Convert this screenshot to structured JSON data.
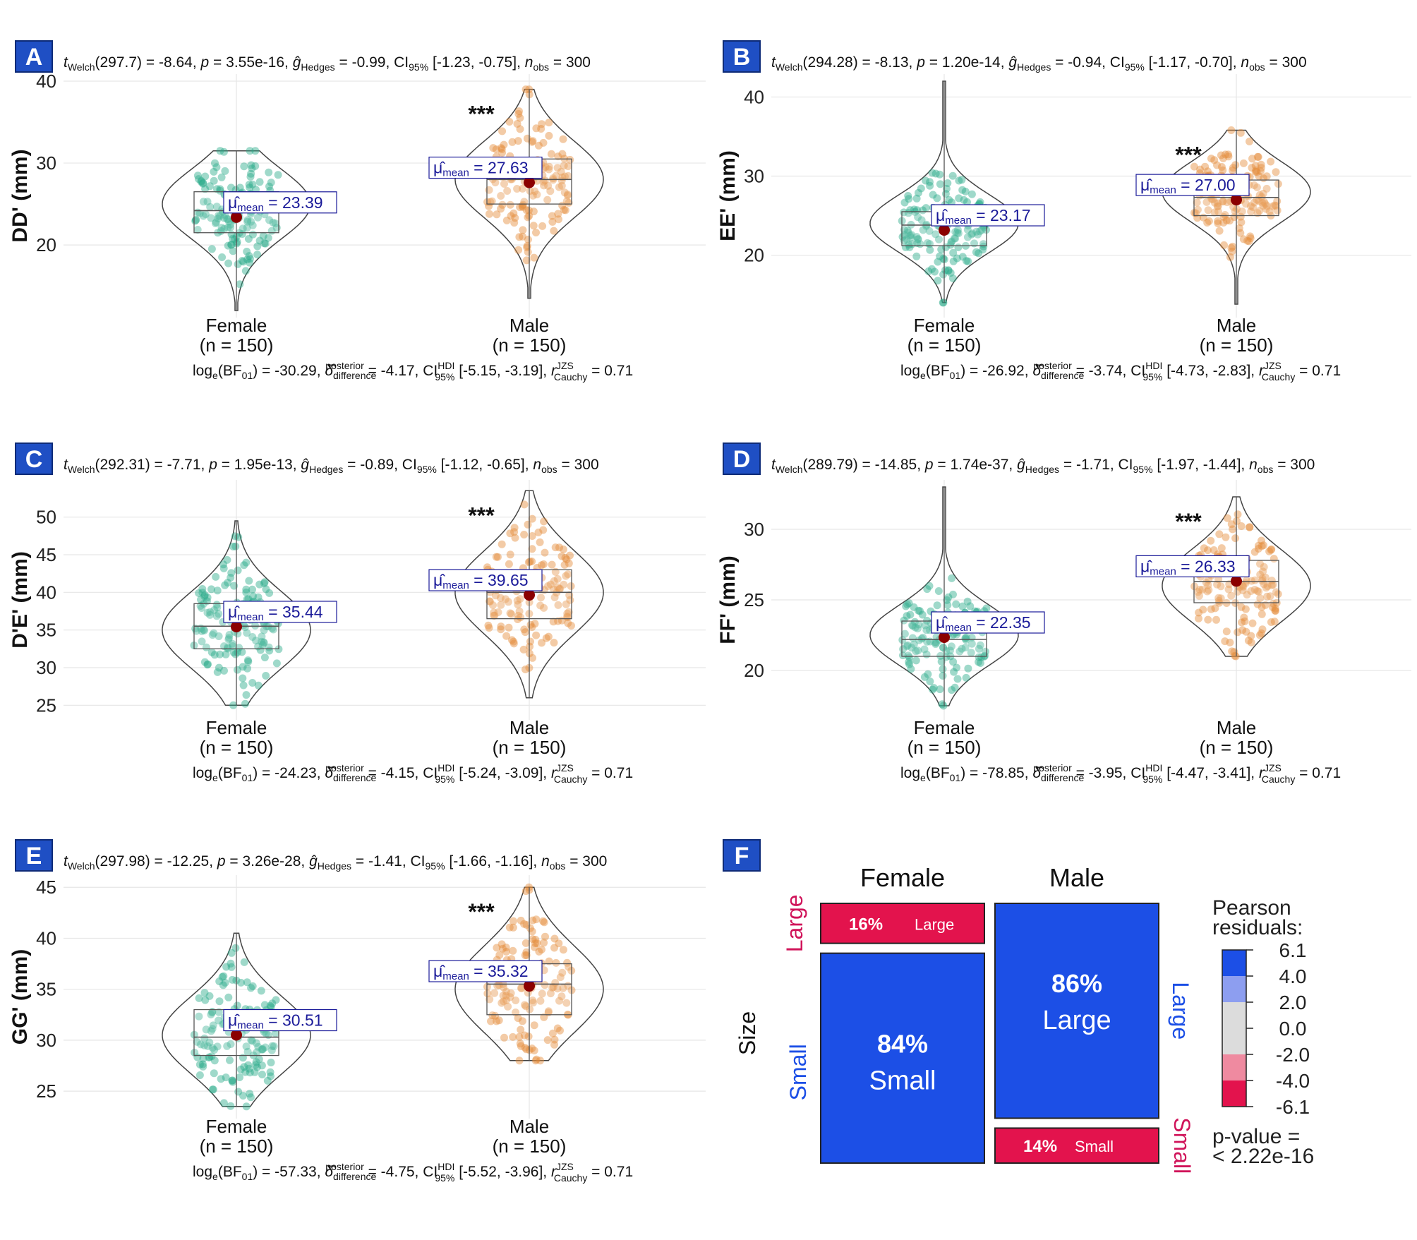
{
  "colors": {
    "female": "#2bab8a",
    "male": "#e48b3a",
    "mean_dot": "#8b0000",
    "badge": "#1f4fc4",
    "mosaic_blue": "#1c4fe6",
    "mosaic_red": "#e3134d",
    "side_blue": "#1c4fe6",
    "side_red": "#d0145a"
  },
  "chart_data": [
    {
      "panel": "A",
      "type": "violin",
      "stat_header": {
        "t_welch": "(297.7) = -8.64, ",
        "p": " = 3.55e-16, ",
        "g": " = -0.99, CI",
        "ci": " [-1.23, -0.75], ",
        "n": " = 300"
      },
      "stat_footer": {
        "logbf": ") = -30.29, ",
        "delta": " = -4.17, CI",
        "ci": " [-5.15, -3.19], ",
        "r": " = 0.71"
      },
      "ylabel": "DD' (mm)",
      "ylim": [
        12,
        40
      ],
      "yticks": [
        20,
        30,
        40
      ],
      "stars": "***",
      "groups": [
        {
          "name": "Female",
          "n_label": "(n = 150)",
          "mean": 23.39,
          "mean_label": "= 23.39",
          "q1": 21.5,
          "median": 24.2,
          "q3": 26.5,
          "min": 12,
          "max": 31.5,
          "peak": 25
        },
        {
          "name": "Male",
          "n_label": "(n = 150)",
          "mean": 27.63,
          "mean_label": "= 27.63",
          "q1": 25,
          "median": 28,
          "q3": 30.5,
          "min": 13.5,
          "max": 39,
          "peak": 28
        }
      ]
    },
    {
      "panel": "B",
      "type": "violin",
      "stat_header": {
        "t_welch": "(294.28) = -8.13, ",
        "p": " = 1.20e-14, ",
        "g": " = -0.94, CI",
        "ci": " [-1.17, -0.70], ",
        "n": " = 300"
      },
      "stat_footer": {
        "logbf": ") = -26.92, ",
        "delta": " = -3.74, CI",
        "ci": " [-4.73, -2.83], ",
        "r": " = 0.71"
      },
      "ylabel": "EE' (mm)",
      "ylim": [
        13,
        42
      ],
      "yticks": [
        20,
        30,
        40
      ],
      "stars": "***",
      "groups": [
        {
          "name": "Female",
          "n_label": "(n = 150)",
          "mean": 23.17,
          "mean_label": "= 23.17",
          "q1": 21.2,
          "median": 23.8,
          "q3": 25.5,
          "min": 14,
          "max": 42,
          "peak": 24
        },
        {
          "name": "Male",
          "n_label": "(n = 150)",
          "mean": 27.0,
          "mean_label": "= 27.00",
          "q1": 25,
          "median": 27.3,
          "q3": 29.5,
          "min": 13.8,
          "max": 35.8,
          "peak": 28
        }
      ]
    },
    {
      "panel": "C",
      "type": "violin",
      "stat_header": {
        "t_welch": "(292.31) = -7.71, ",
        "p": " = 1.95e-13, ",
        "g": " = -0.89, CI",
        "ci": " [-1.12, -0.65], ",
        "n": " = 300"
      },
      "stat_footer": {
        "logbf": ") = -24.23, ",
        "delta": " = -4.15, CI",
        "ci": " [-5.24, -3.09], ",
        "r": " = 0.71"
      },
      "ylabel": "D'E' (mm)",
      "ylim": [
        24,
        54
      ],
      "yticks": [
        25,
        30,
        35,
        40,
        45,
        50
      ],
      "stars": "***",
      "groups": [
        {
          "name": "Female",
          "n_label": "(n = 150)",
          "mean": 35.44,
          "mean_label": "= 35.44",
          "q1": 32.5,
          "median": 35.5,
          "q3": 38.5,
          "min": 25,
          "max": 49.5,
          "peak": 35
        },
        {
          "name": "Male",
          "n_label": "(n = 150)",
          "mean": 39.65,
          "mean_label": "= 39.65",
          "q1": 36.5,
          "median": 40,
          "q3": 43,
          "min": 26,
          "max": 53.5,
          "peak": 40
        }
      ]
    },
    {
      "panel": "D",
      "type": "violin",
      "stat_header": {
        "t_welch": "(289.79) = -14.85, ",
        "p": " = 1.74e-37, ",
        "g": " = -1.71, CI",
        "ci": " [-1.97, -1.44], ",
        "n": " = 300"
      },
      "stat_footer": {
        "logbf": ") = -78.85, ",
        "delta": " = -3.95, CI",
        "ci": " [-4.47, -3.41], ",
        "r": " = 0.71"
      },
      "ylabel": "FF' (mm)",
      "ylim": [
        17,
        33
      ],
      "yticks": [
        20,
        25,
        30
      ],
      "stars": "***",
      "groups": [
        {
          "name": "Female",
          "n_label": "(n = 150)",
          "mean": 22.35,
          "mean_label": "= 22.35",
          "q1": 21,
          "median": 22.2,
          "q3": 23.5,
          "min": 17.5,
          "max": 33,
          "peak": 22.5
        },
        {
          "name": "Male",
          "n_label": "(n = 150)",
          "mean": 26.33,
          "mean_label": "= 26.33",
          "q1": 24.8,
          "median": 26.3,
          "q3": 27.8,
          "min": 21,
          "max": 32.3,
          "peak": 26
        }
      ]
    },
    {
      "panel": "E",
      "type": "violin",
      "stat_header": {
        "t_welch": "(297.98) = -12.25, ",
        "p": " = 3.26e-28, ",
        "g": " = -1.41, CI",
        "ci": " [-1.66, -1.16], ",
        "n": " = 300"
      },
      "stat_footer": {
        "logbf": ") = -57.33, ",
        "delta": " = -4.75, CI",
        "ci": " [-5.52, -3.96], ",
        "r": " = 0.71"
      },
      "ylabel": "GG' (mm)",
      "ylim": [
        23,
        45.5
      ],
      "yticks": [
        25,
        30,
        35,
        40,
        45
      ],
      "stars": "***",
      "groups": [
        {
          "name": "Female",
          "n_label": "(n = 150)",
          "mean": 30.51,
          "mean_label": "= 30.51",
          "q1": 28.5,
          "median": 30.3,
          "q3": 33,
          "min": 23.5,
          "max": 40.5,
          "peak": 30.5
        },
        {
          "name": "Male",
          "n_label": "(n = 150)",
          "mean": 35.32,
          "mean_label": "= 35.32",
          "q1": 32.5,
          "median": 35.5,
          "q3": 37.5,
          "min": 28,
          "max": 45,
          "peak": 35
        }
      ]
    },
    {
      "panel": "F",
      "type": "mosaic",
      "columns": [
        "Female",
        "Male"
      ],
      "y_axis_label": "Size",
      "cells": {
        "female_large": {
          "pct": "16%",
          "label": "Large",
          "value": 0.16
        },
        "female_small": {
          "pct": "84%",
          "label": "Small",
          "value": 0.84
        },
        "male_large": {
          "pct": "86%",
          "label": "Large",
          "value": 0.86
        },
        "male_small": {
          "pct": "14%",
          "label": "Small",
          "value": 0.14
        }
      },
      "left_labels": [
        "Large",
        "Small"
      ],
      "right_labels": [
        "Large",
        "Small"
      ],
      "legend": {
        "title_line1": "Pearson",
        "title_line2": "residuals:",
        "ticks": [
          "6.1",
          "4.0",
          "2.0",
          "0.0",
          "-2.0",
          "-4.0",
          "-6.1"
        ],
        "colors": [
          "#1c4fe6",
          "#8d9ef0",
          "#dcdcdc",
          "#dcdcdc",
          "#ef8aa0",
          "#e3134d"
        ]
      },
      "p_value_line1": "p-value =",
      "p_value_line2": "< 2.22e-16"
    }
  ],
  "labels": {
    "welch": "Welch",
    "hedges": "Hedges",
    "ci95": "95%",
    "obs": "obs",
    "mean": "mean",
    "loge": "log",
    "bf": "(BF",
    "bf_sub": "01",
    "posterior": "posterior",
    "difference": "difference",
    "hdi": "HDI",
    "jzs": "JZS",
    "cauchy": "Cauchy",
    "e_sub": "e"
  }
}
